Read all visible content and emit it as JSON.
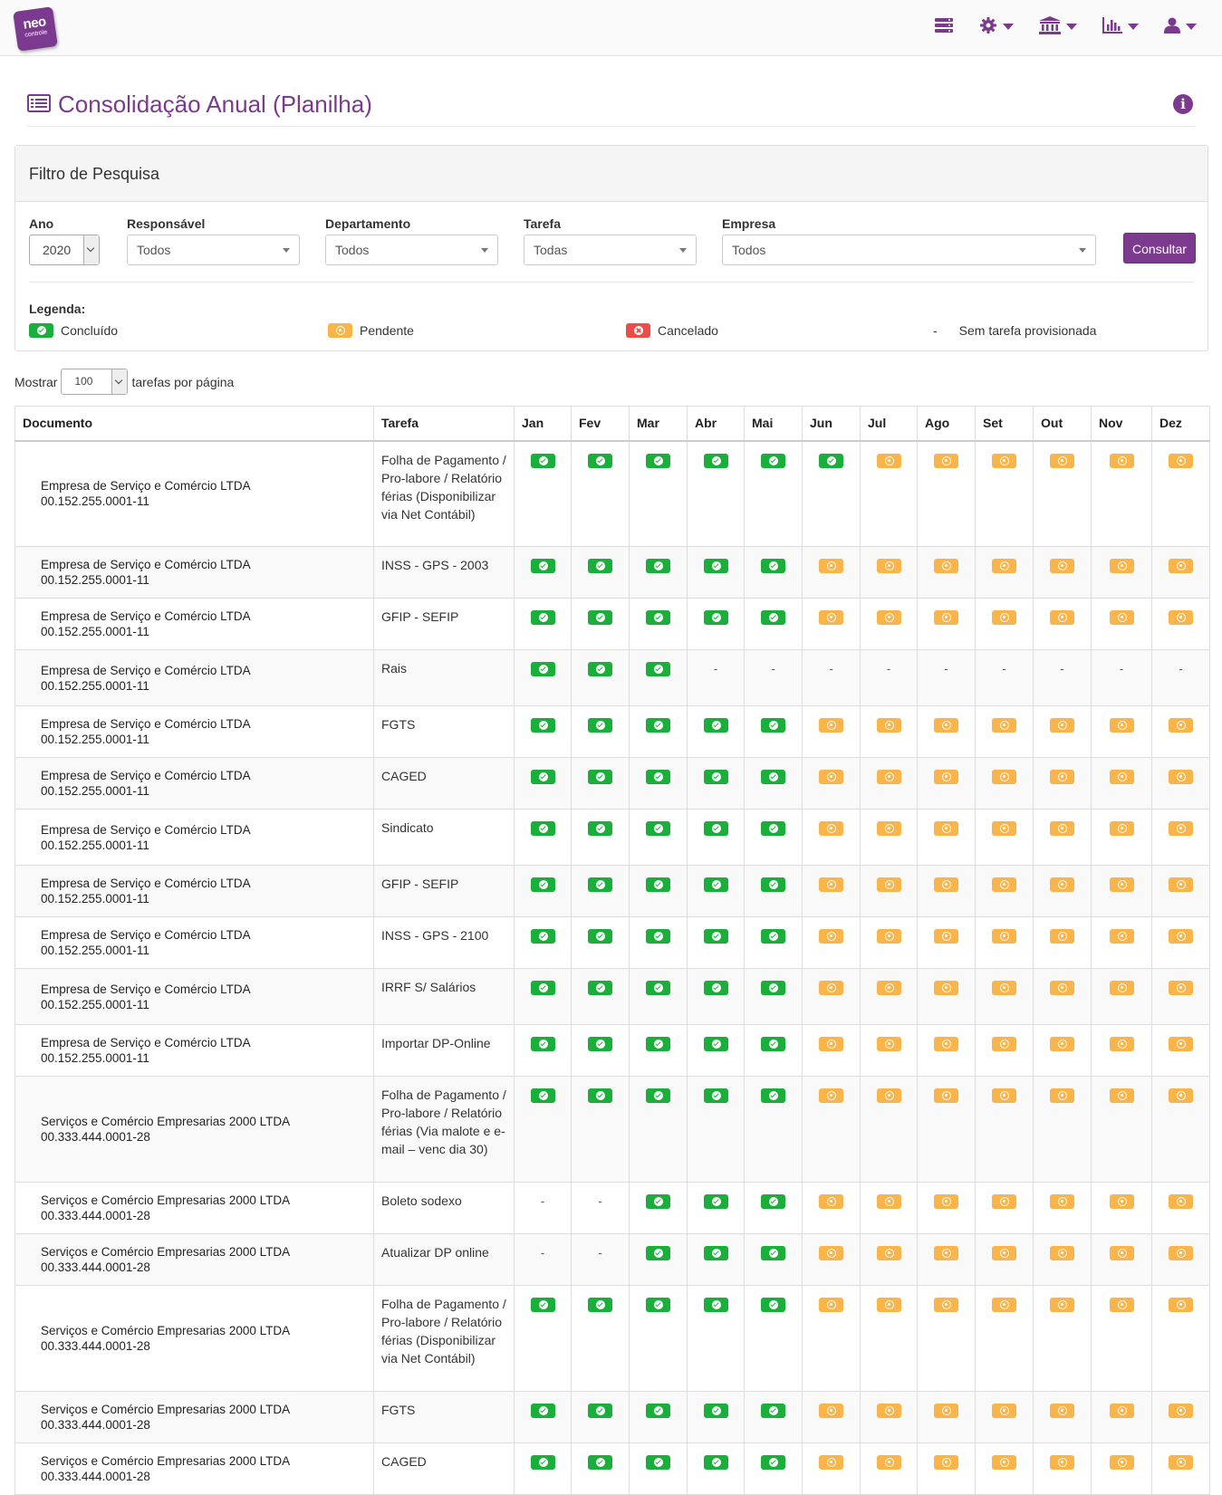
{
  "app": {
    "logo_line1": "neo",
    "logo_line2": "controle"
  },
  "nav": [
    {
      "icon": "server-icon",
      "has_caret": false
    },
    {
      "icon": "gear-icon",
      "has_caret": true
    },
    {
      "icon": "bank-icon",
      "has_caret": true
    },
    {
      "icon": "bar-chart-icon",
      "has_caret": true
    },
    {
      "icon": "user-icon",
      "has_caret": true
    }
  ],
  "page": {
    "title": "Consolidação Anual (Planilha)"
  },
  "filter": {
    "heading": "Filtro de Pesquisa",
    "ano": {
      "label": "Ano",
      "value": "2020"
    },
    "responsavel": {
      "label": "Responsável",
      "value": "Todos"
    },
    "departamento": {
      "label": "Departamento",
      "value": "Todos"
    },
    "tarefa": {
      "label": "Tarefa",
      "value": "Todas"
    },
    "empresa": {
      "label": "Empresa",
      "value": "Todos"
    },
    "consultar": "Consultar"
  },
  "legend": {
    "title": "Legenda:",
    "concluido": "Concluído",
    "pendente": "Pendente",
    "cancelado": "Cancelado",
    "sem_dash": "-",
    "sem_tarefa": "Sem tarefa provisionada"
  },
  "length": {
    "prefix": "Mostrar",
    "value": "100",
    "suffix": "tarefas por página"
  },
  "table": {
    "columns": [
      "Documento",
      "Tarefa",
      "Jan",
      "Fev",
      "Mar",
      "Abr",
      "Mai",
      "Jun",
      "Jul",
      "Ago",
      "Set",
      "Out",
      "Nov",
      "Dez"
    ],
    "rows": [
      {
        "company": "Empresa de Serviço e Comércio LTDA",
        "cnpj": "00.152.255.0001-11",
        "task": "Folha de Pagamento / Pro-labore / Relatório férias (Disponibilizar via Net Contábil)",
        "status": "CCCCCCPPPPPP"
      },
      {
        "company": "Empresa de Serviço e Comércio LTDA",
        "cnpj": "00.152.255.0001-11",
        "task": "INSS - GPS - 2003",
        "status": "CCCCCPPPPPPP"
      },
      {
        "company": "Empresa de Serviço e Comércio LTDA",
        "cnpj": "00.152.255.0001-11",
        "task": "GFIP - SEFIP",
        "status": "CCCCCPPPPPPP"
      },
      {
        "company": "Empresa de Serviço e Comércio LTDA",
        "cnpj": "00.152.255.0001-11",
        "task": "Rais",
        "status": "CCC---------"
      },
      {
        "company": "Empresa de Serviço e Comércio LTDA",
        "cnpj": "00.152.255.0001-11",
        "task": "FGTS",
        "status": "CCCCCPPPPPPP"
      },
      {
        "company": "Empresa de Serviço e Comércio LTDA",
        "cnpj": "00.152.255.0001-11",
        "task": "CAGED",
        "status": "CCCCCPPPPPPP"
      },
      {
        "company": "Empresa de Serviço e Comércio LTDA",
        "cnpj": "00.152.255.0001-11",
        "task": "Sindicato",
        "status": "CCCCCPPPPPPP"
      },
      {
        "company": "Empresa de Serviço e Comércio LTDA",
        "cnpj": "00.152.255.0001-11",
        "task": "GFIP - SEFIP",
        "status": "CCCCCPPPPPPP"
      },
      {
        "company": "Empresa de Serviço e Comércio LTDA",
        "cnpj": "00.152.255.0001-11",
        "task": "INSS - GPS - 2100",
        "status": "CCCCCPPPPPPP"
      },
      {
        "company": "Empresa de Serviço e Comércio LTDA",
        "cnpj": "00.152.255.0001-11",
        "task": "IRRF S/ Salários",
        "status": "CCCCCPPPPPPP"
      },
      {
        "company": "Empresa de Serviço e Comércio LTDA",
        "cnpj": "00.152.255.0001-11",
        "task": "Importar DP-Online",
        "status": "CCCCCPPPPPPP"
      },
      {
        "company": "Serviços e Comércio Empresarias 2000 LTDA",
        "cnpj": "00.333.444.0001-28",
        "task": "Folha de Pagamento / Pro-labore / Relatório férias (Via malote e e-mail – venc dia 30)",
        "status": "CCCCCPPPPPPP"
      },
      {
        "company": "Serviços e Comércio Empresarias 2000 LTDA",
        "cnpj": "00.333.444.0001-28",
        "task": "Boleto sodexo",
        "status": "--CCCPPPPPPP"
      },
      {
        "company": "Serviços e Comércio Empresarias 2000 LTDA",
        "cnpj": "00.333.444.0001-28",
        "task": "Atualizar DP online",
        "status": "--CCCPPPPPPP"
      },
      {
        "company": "Serviços e Comércio Empresarias 2000 LTDA",
        "cnpj": "00.333.444.0001-28",
        "task": "Folha de Pagamento / Pro-labore / Relatório férias (Disponibilizar via Net Contábil)",
        "status": "CCCCCPPPPPPP"
      },
      {
        "company": "Serviços e Comércio Empresarias 2000 LTDA",
        "cnpj": "00.333.444.0001-28",
        "task": "FGTS",
        "status": "CCCCCPPPPPPP"
      },
      {
        "company": "Serviços e Comércio Empresarias 2000 LTDA",
        "cnpj": "00.333.444.0001-28",
        "task": "CAGED",
        "status": "CCCCCPPPPPPP"
      }
    ]
  },
  "colors": {
    "accent": "#7b3a8e",
    "concluido": "#1aae3a",
    "pendente": "#f9b54a",
    "cancelado": "#ef4b4b"
  }
}
